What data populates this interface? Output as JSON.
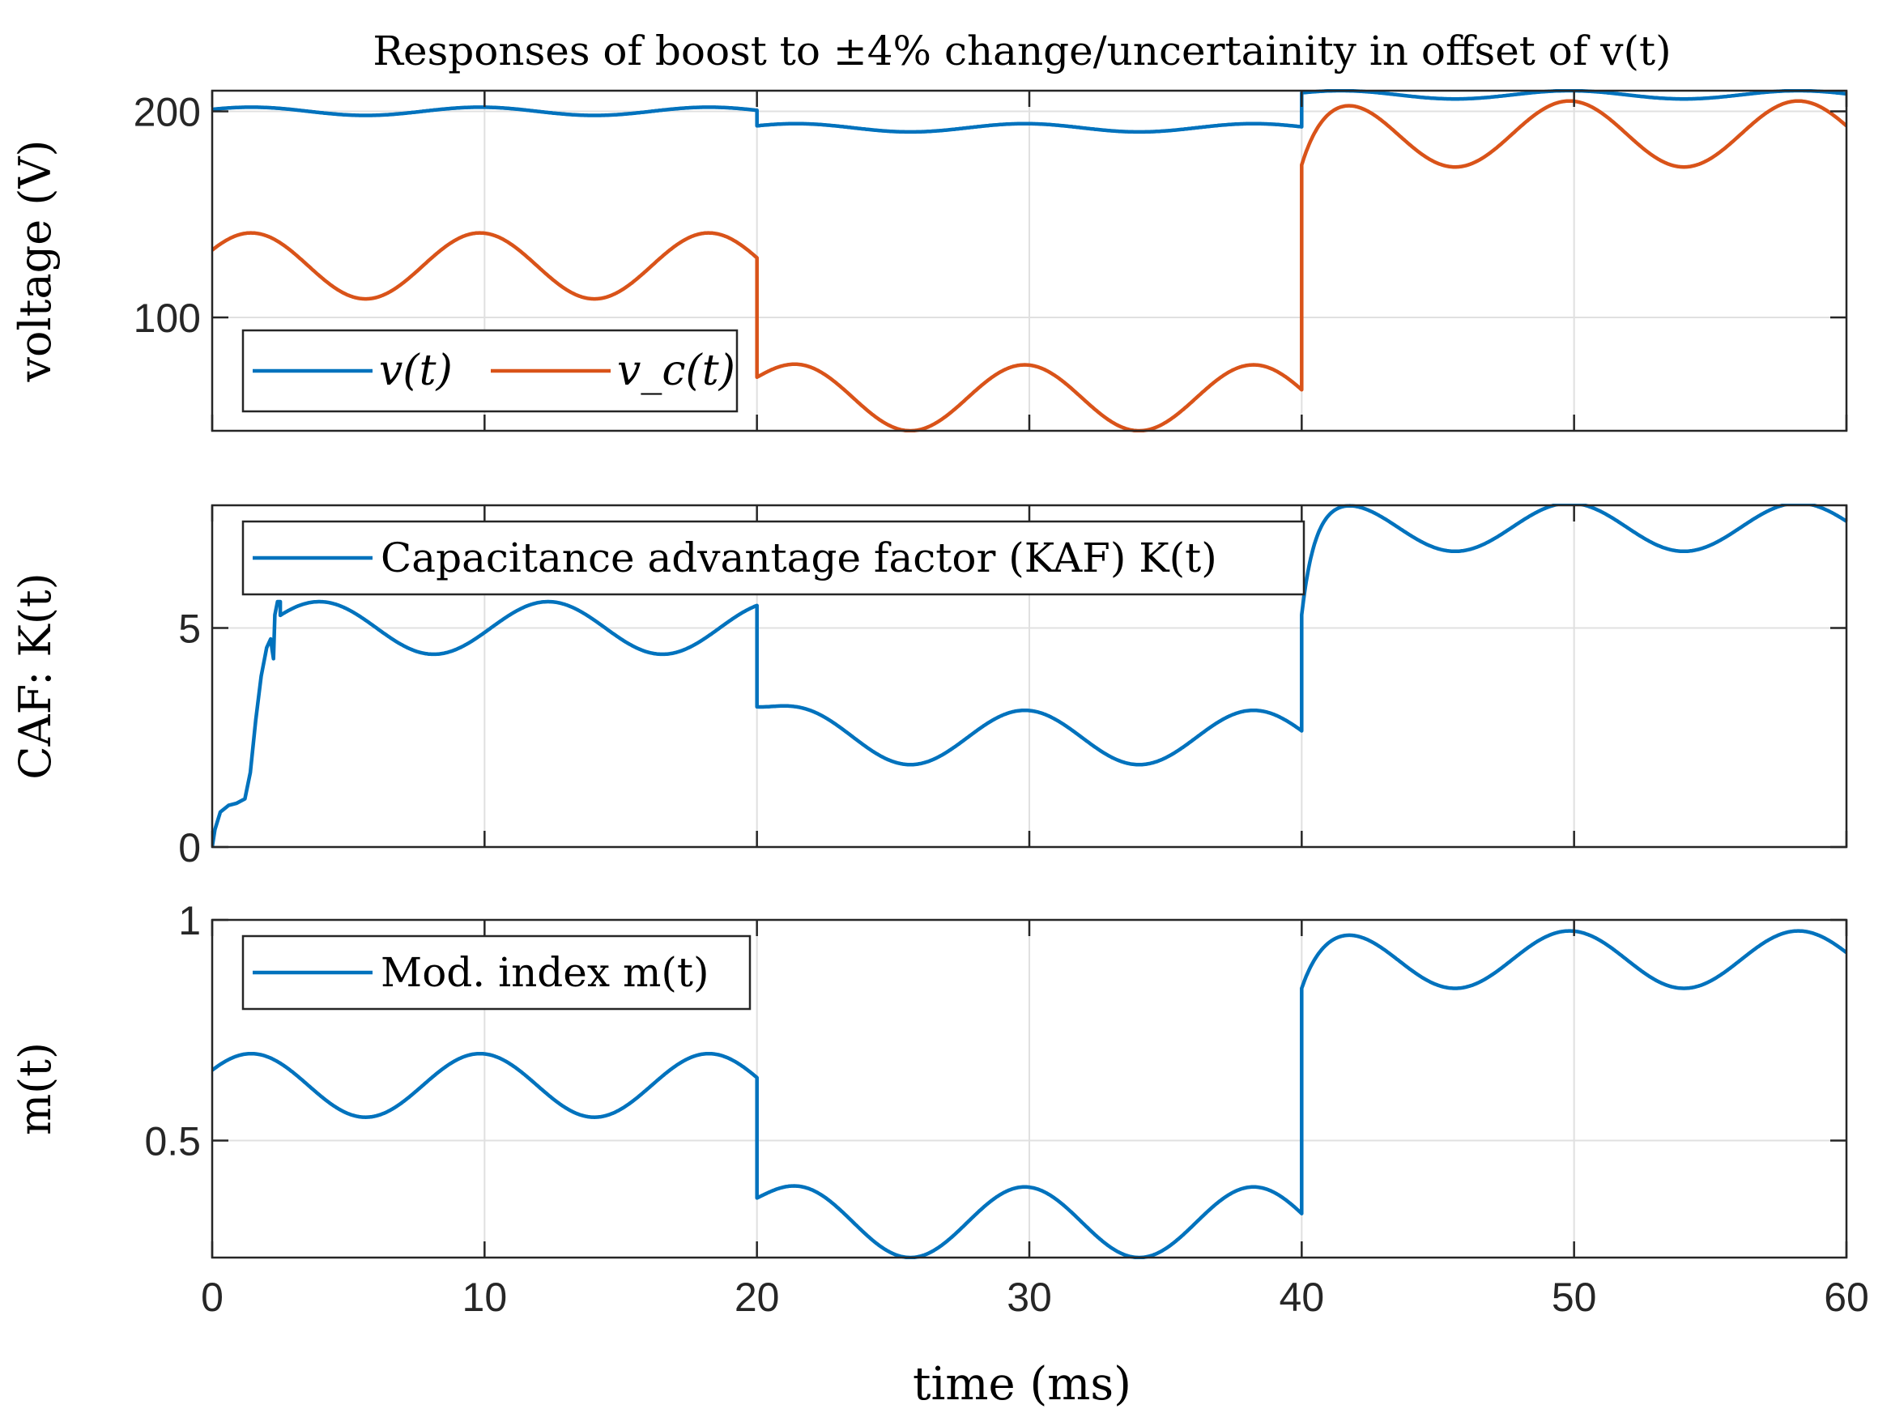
{
  "title": "Responses of boost to ±4% change/uncertainity in offset of v(t)",
  "xlabel": "time (ms)",
  "colors": {
    "series1": "#0072BD",
    "series2": "#D95319",
    "grid": "#e0e0e0",
    "axis": "#262626"
  },
  "chart_data": [
    {
      "type": "line",
      "title": "Responses of boost to ±4% change/uncertainity in offset of v(t)",
      "xlabel": "",
      "ylabel": "voltage (V)",
      "xlim": [
        0,
        60
      ],
      "ylim": [
        45,
        210
      ],
      "xticks": [
        0,
        10,
        20,
        30,
        40,
        50,
        60
      ],
      "yticks": [
        100,
        200
      ],
      "ytick_labels": [
        "100",
        "200"
      ],
      "grid": true,
      "legend_position": "bottom-left",
      "legend_layout": "horizontal",
      "series": [
        {
          "name": "v(t)",
          "color": "#0072BD",
          "segments": [
            {
              "x_start": 0,
              "x_end": 20,
              "offset": 200,
              "amplitude": 2,
              "period": 8.4,
              "phase": 0.5
            },
            {
              "x_start": 20,
              "x_end": 40,
              "offset": 192,
              "amplitude": 2,
              "period": 8.4,
              "phase": 0.5
            },
            {
              "x_start": 40,
              "x_end": 60,
              "offset": 208,
              "amplitude": 2,
              "period": 8.4,
              "phase": 0.5
            }
          ]
        },
        {
          "name": "v_c(t)",
          "color": "#D95319",
          "segments": [
            {
              "x_start": 0,
              "x_end": 20,
              "offset": 125,
              "amplitude": 16,
              "period": 8.4,
              "phase": 0.5
            },
            {
              "x_start": 20,
              "x_end": 40,
              "offset": 61,
              "amplitude": 16,
              "period": 8.4,
              "phase": 0.5,
              "start_value": 71,
              "transient_tau": 0.7
            },
            {
              "x_start": 40,
              "x_end": 60,
              "offset": 189,
              "amplitude": 16,
              "period": 8.4,
              "phase": 0.5,
              "start_value": 174,
              "transient_tau": 0.7
            }
          ]
        }
      ]
    },
    {
      "type": "line",
      "xlabel": "",
      "ylabel": "CAF: K(t)",
      "xlim": [
        0,
        60
      ],
      "ylim": [
        0,
        7.8
      ],
      "xticks": [
        0,
        10,
        20,
        30,
        40,
        50,
        60
      ],
      "yticks": [
        0,
        5
      ],
      "ytick_labels": [
        "0",
        "5"
      ],
      "grid": true,
      "legend_position": "top-left",
      "series": [
        {
          "name": "Capacitance advantage factor (KAF) K(t)",
          "color": "#0072BD",
          "startup": {
            "x": [
              0,
              0.1,
              0.3,
              0.6,
              0.9,
              1.2,
              1.4,
              1.6,
              1.8,
              2.0,
              2.15,
              2.2,
              2.25,
              2.3,
              2.4,
              2.5
            ],
            "y": [
              0,
              0.4,
              0.8,
              0.95,
              1.0,
              1.1,
              1.7,
              2.9,
              3.9,
              4.55,
              4.75,
              4.5,
              4.3,
              5.3,
              5.6,
              5.6
            ]
          },
          "segments": [
            {
              "x_start": 2.5,
              "x_end": 20,
              "offset": 5.0,
              "amplitude": 0.6,
              "period": 8.4,
              "phase": 0.5
            },
            {
              "x_start": 20,
              "x_end": 40,
              "offset": 2.5,
              "amplitude": 0.62,
              "period": 8.4,
              "phase": 0.5,
              "start_value": 3.2,
              "transient_tau": 0.9
            },
            {
              "x_start": 40,
              "x_end": 60,
              "offset": 7.3,
              "amplitude": 0.55,
              "period": 8.4,
              "phase": 0.5,
              "start_value": 5.3,
              "transient_tau": 0.45
            }
          ]
        }
      ]
    },
    {
      "type": "line",
      "xlabel": "time (ms)",
      "ylabel": "m(t)",
      "xlim": [
        0,
        60
      ],
      "ylim": [
        0.235,
        1.0
      ],
      "xticks": [
        0,
        10,
        20,
        30,
        40,
        50,
        60
      ],
      "xtick_labels": [
        "0",
        "10",
        "20",
        "30",
        "40",
        "50",
        "60"
      ],
      "yticks": [
        0.5,
        1
      ],
      "ytick_labels": [
        "0.5",
        "1"
      ],
      "grid": true,
      "legend_position": "top-left",
      "series": [
        {
          "name": "Mod. index m(t)",
          "color": "#0072BD",
          "segments": [
            {
              "x_start": 0,
              "x_end": 20,
              "offset": 0.625,
              "amplitude": 0.072,
              "period": 8.4,
              "phase": 0.5
            },
            {
              "x_start": 20,
              "x_end": 40,
              "offset": 0.315,
              "amplitude": 0.08,
              "period": 8.4,
              "phase": 0.5,
              "start_value": 0.37,
              "transient_tau": 0.7
            },
            {
              "x_start": 40,
              "x_end": 60,
              "offset": 0.91,
              "amplitude": 0.065,
              "period": 8.4,
              "phase": 0.5,
              "start_value": 0.845,
              "transient_tau": 0.7
            }
          ]
        }
      ]
    }
  ]
}
